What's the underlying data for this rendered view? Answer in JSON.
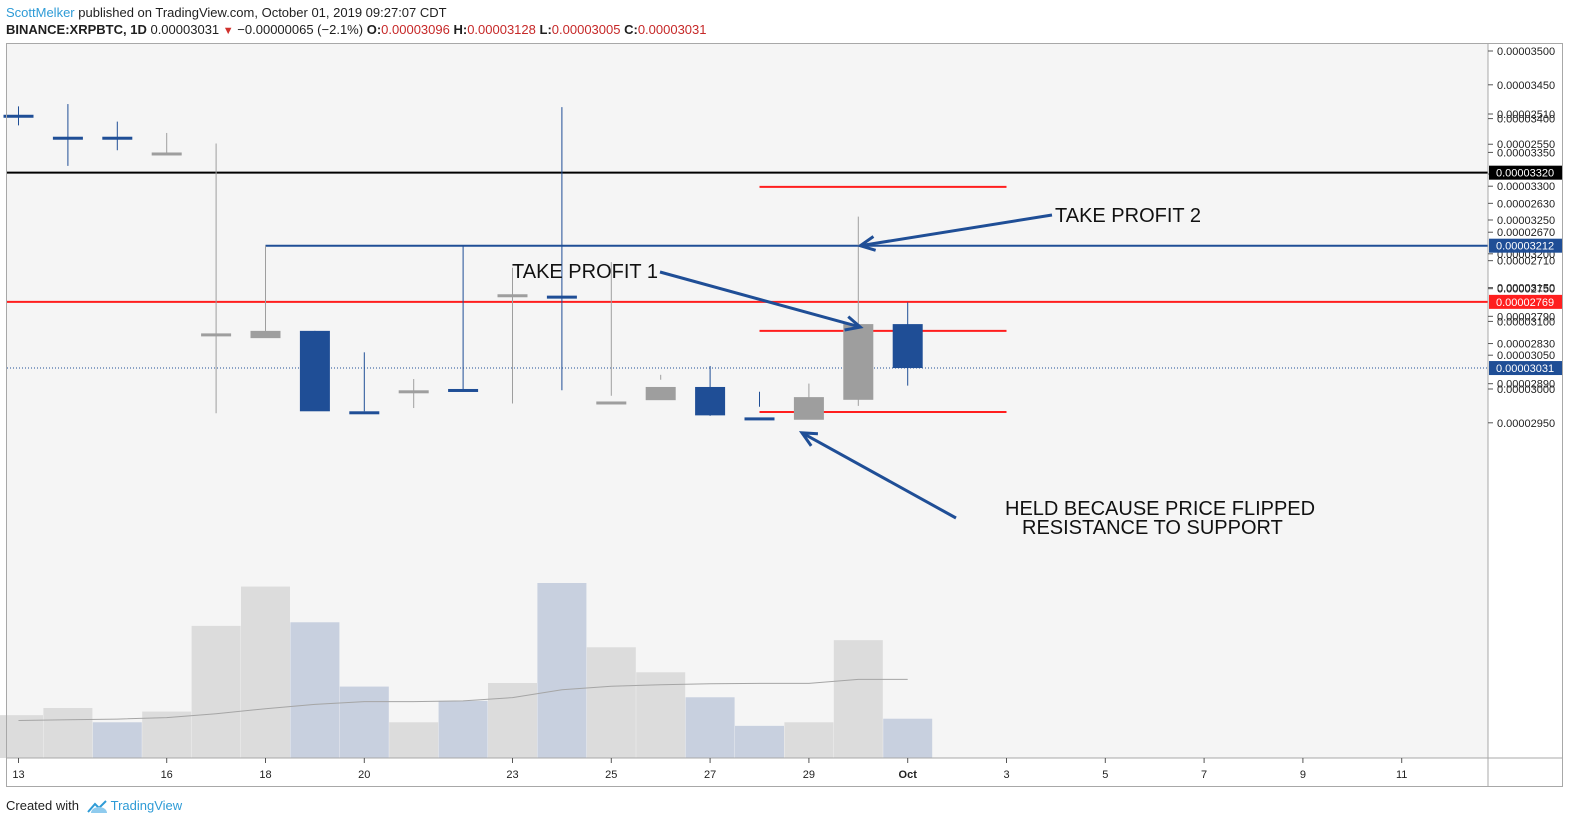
{
  "header": {
    "author": "ScottMelker",
    "published_text": "published on TradingView.com, October 01, 2019 09:27:07 CDT",
    "symbol": "BINANCE:XRPBTC, 1D",
    "last": "0.00003031",
    "change": "−0.00000065 (−2.1%)",
    "o_label": "O:",
    "o_value": "0.00003096",
    "h_label": "H:",
    "h_value": "0.00003128",
    "l_label": "L:",
    "l_value": "0.00003005",
    "c_label": "C:",
    "c_value": "0.00003031"
  },
  "footer": {
    "created_with": "Created with",
    "brand": "TradingView"
  },
  "colors": {
    "up": "#9e9e9e",
    "down": "#1f4e96",
    "plot_bg": "#f5f5f5",
    "red_line": "#ff1e1e",
    "blue_line": "#1f4e96",
    "black_line": "#000000",
    "volume_up": "#dcdcdc",
    "volume_down": "#c8d0df",
    "ma_line": "#a5a5a5"
  },
  "chart_data": {
    "type": "candlestick",
    "y_ticks": [
      "0.00003500",
      "0.00003450",
      "0.00003400",
      "0.00003350",
      "0.00003300",
      "0.00003250",
      "0.00003200",
      "0.00003150",
      "0.00003100",
      "0.00003050",
      "0.00003000",
      "0.00002950",
      "0.00002890",
      "0.00002830",
      "0.00002790",
      "0.00002750",
      "0.00002710",
      "0.00002670",
      "0.00002630",
      "0.00002590",
      "0.00002550",
      "0.00002510"
    ],
    "x_ticks": [
      "13",
      "16",
      "18",
      "20",
      "23",
      "25",
      "27",
      "29",
      "Oct",
      "3",
      "5",
      "7",
      "9",
      "11"
    ],
    "candles": [
      {
        "day": 13,
        "open": 2511,
        "high": 2525,
        "low": 2500,
        "close": 2510
      },
      {
        "day": 14,
        "open": 2540,
        "high": 2579,
        "low": 2497,
        "close": 2500
      },
      {
        "day": 15,
        "open": 2540,
        "high": 2558,
        "low": 2520,
        "close": 2538
      },
      {
        "day": 16,
        "open": 2538,
        "high": 2563,
        "low": 2535,
        "close": 2561
      },
      {
        "day": 17,
        "open": 2552,
        "high": 2935,
        "low": 2549,
        "close": 2815
      },
      {
        "day": 18,
        "open": 2822,
        "high": 3212,
        "low": 2818,
        "close": 3086
      },
      {
        "day": 19,
        "open": 3086,
        "high": 3086,
        "low": 2877,
        "close": 2932
      },
      {
        "day": 20,
        "open": 2932,
        "high": 2932,
        "low": 2843,
        "close": 2890
      },
      {
        "day": 21,
        "open": 2892,
        "high": 2927,
        "low": 2883,
        "close": 2900
      },
      {
        "day": 22,
        "open": 2898,
        "high": 2898,
        "low": 2690,
        "close": 2759
      },
      {
        "day": 23,
        "open": 2754,
        "high": 2920,
        "low": 2720,
        "close": 2758
      },
      {
        "day": 24,
        "open": 2760,
        "high": 2900,
        "low": 2501,
        "close": 2736
      },
      {
        "day": 25,
        "open": 2736,
        "high": 2990,
        "low": 2712,
        "close": 2917
      },
      {
        "day": 26,
        "open": 2915,
        "high": 3021,
        "low": 2884,
        "close": 3003
      },
      {
        "day": 27,
        "open": 3003,
        "high": 3034,
        "low": 2939,
        "close": 2961
      },
      {
        "day": 28,
        "open": 2958,
        "high": 2996,
        "low": 2925,
        "close": 2946
      },
      {
        "day": 29,
        "open": 2945,
        "high": 3008,
        "low": 2938,
        "close": 2988
      },
      {
        "day": 30,
        "open": 2984,
        "high": 3255,
        "low": 2975,
        "close": 3096
      },
      {
        "day": 31,
        "open": 3096,
        "high": 3128,
        "low": 3005,
        "close": 3031
      }
    ],
    "volume": [
      {
        "day": 13,
        "value": 12,
        "dir": "up"
      },
      {
        "day": 14,
        "value": 14,
        "dir": "up"
      },
      {
        "day": 15,
        "value": 10,
        "dir": "down"
      },
      {
        "day": 16,
        "value": 13,
        "dir": "up"
      },
      {
        "day": 17,
        "value": 37,
        "dir": "up"
      },
      {
        "day": 18,
        "value": 48,
        "dir": "up"
      },
      {
        "day": 19,
        "value": 38,
        "dir": "down"
      },
      {
        "day": 20,
        "value": 20,
        "dir": "down"
      },
      {
        "day": 21,
        "value": 10,
        "dir": "up"
      },
      {
        "day": 22,
        "value": 16,
        "dir": "down"
      },
      {
        "day": 23,
        "value": 21,
        "dir": "up"
      },
      {
        "day": 24,
        "value": 49,
        "dir": "down"
      },
      {
        "day": 25,
        "value": 31,
        "dir": "up"
      },
      {
        "day": 26,
        "value": 24,
        "dir": "up"
      },
      {
        "day": 27,
        "value": 17,
        "dir": "down"
      },
      {
        "day": 28,
        "value": 9,
        "dir": "down"
      },
      {
        "day": 29,
        "value": 10,
        "dir": "up"
      },
      {
        "day": 30,
        "value": 33,
        "dir": "up"
      },
      {
        "day": 31,
        "value": 11,
        "dir": "down"
      }
    ],
    "volume_ma": [
      {
        "day": 13,
        "value": 10.5
      },
      {
        "day": 14,
        "value": 10.7
      },
      {
        "day": 15,
        "value": 10.9
      },
      {
        "day": 16,
        "value": 11.3
      },
      {
        "day": 17,
        "value": 12.4
      },
      {
        "day": 18,
        "value": 13.8
      },
      {
        "day": 19,
        "value": 15.0
      },
      {
        "day": 20,
        "value": 15.8
      },
      {
        "day": 21,
        "value": 15.8
      },
      {
        "day": 22,
        "value": 16.0
      },
      {
        "day": 23,
        "value": 16.9
      },
      {
        "day": 24,
        "value": 19.1
      },
      {
        "day": 25,
        "value": 20.1
      },
      {
        "day": 26,
        "value": 20.5
      },
      {
        "day": 27,
        "value": 20.8
      },
      {
        "day": 28,
        "value": 20.9
      },
      {
        "day": 29,
        "value": 20.9
      },
      {
        "day": 30,
        "value": 22.0
      },
      {
        "day": 31,
        "value": 22.0
      }
    ],
    "horizontal_lines": [
      {
        "name": "resistance-black",
        "price": 3320,
        "label": "0.00003320",
        "color": "#000000"
      },
      {
        "name": "take-profit-2-blue",
        "price": 3212,
        "label": "0.00003212",
        "color": "#1f4e96",
        "from_day": 18
      },
      {
        "name": "support-red",
        "price": 2769,
        "label": "0.00002769",
        "color": "#ff1e1e"
      },
      {
        "name": "current-price",
        "price": 3031,
        "label": "0.00003031",
        "color": "#1f4e96",
        "dotted": true
      }
    ],
    "segments": [
      {
        "name": "red-level-top",
        "price": 3299,
        "from_day": 28.0,
        "to_day": 33.0
      },
      {
        "name": "red-level-mid",
        "price": 3086,
        "from_day": 28.0,
        "to_day": 33.0
      },
      {
        "name": "red-level-low",
        "price": 2933,
        "from_day": 28.0,
        "to_day": 33.0
      }
    ],
    "annotations": [
      {
        "text": "TAKE PROFIT 2",
        "anchor_day": 30,
        "anchor_price": 3212
      },
      {
        "text": "TAKE PROFIT 1",
        "anchor_day": 30,
        "anchor_price": 3096
      },
      {
        "text": "HELD BECAUSE PRICE FLIPPED",
        "anchor_day": 28.9,
        "anchor_price": 2913
      },
      {
        "text": "RESISTANCE TO SUPPORT"
      }
    ]
  }
}
